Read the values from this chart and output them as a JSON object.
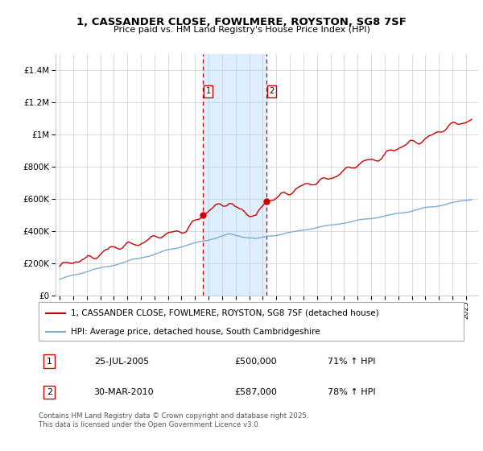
{
  "title": "1, CASSANDER CLOSE, FOWLMERE, ROYSTON, SG8 7SF",
  "subtitle": "Price paid vs. HM Land Registry's House Price Index (HPI)",
  "ylim": [
    0,
    1500000
  ],
  "yticks": [
    0,
    200000,
    400000,
    600000,
    800000,
    1000000,
    1200000,
    1400000
  ],
  "sale1_year": 2005.583,
  "sale1_price": 500000,
  "sale1_label": "25-JUL-2005",
  "sale1_pct": "71%",
  "sale2_year": 2010.25,
  "sale2_price": 587000,
  "sale2_label": "30-MAR-2010",
  "sale2_pct": "78%",
  "legend_property": "1, CASSANDER CLOSE, FOWLMERE, ROYSTON, SG8 7SF (detached house)",
  "legend_hpi": "HPI: Average price, detached house, South Cambridgeshire",
  "footer": "Contains HM Land Registry data © Crown copyright and database right 2025.\nThis data is licensed under the Open Government Licence v3.0.",
  "property_color": "#cc0000",
  "hpi_color": "#7aadd4",
  "shade_color": "#ddeeff",
  "background_color": "#ffffff",
  "grid_color": "#cccccc",
  "xlim_left": 1994.7,
  "xlim_right": 2025.9
}
